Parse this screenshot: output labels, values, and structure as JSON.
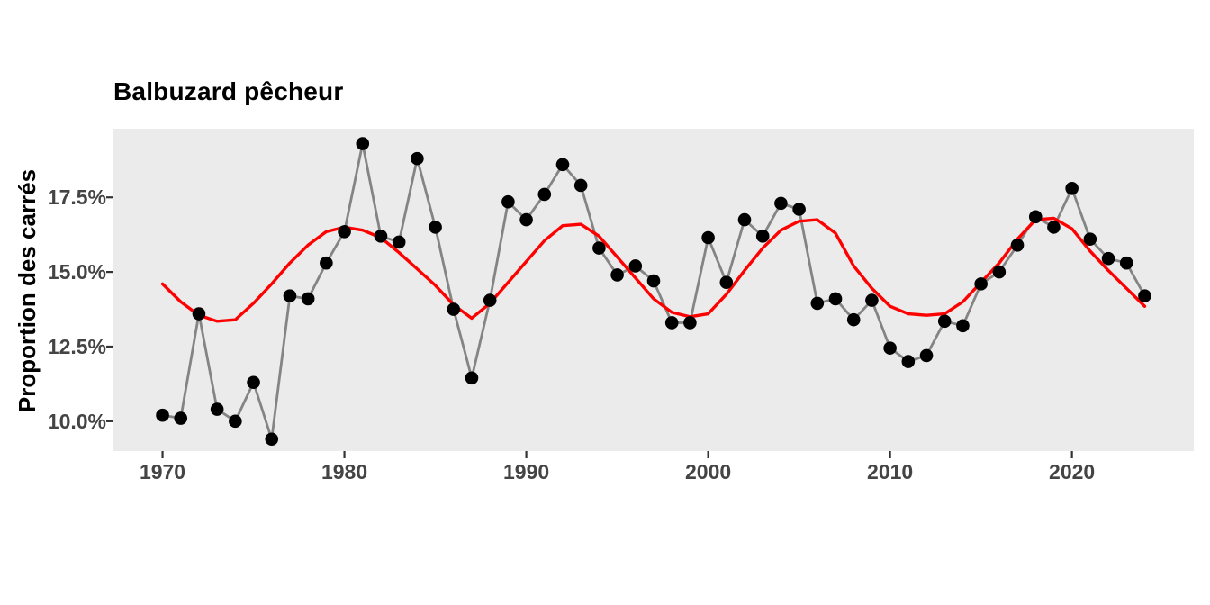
{
  "chart_data": {
    "type": "line",
    "title": "Balbuzard pêcheur",
    "ylabel": "Proportion des carrés",
    "xlabel": "",
    "unit": "%",
    "grid": false,
    "legend": "none",
    "panel_background": "#EBEBEB",
    "axis_text_color": "#444444",
    "tick_mark_color": "#333333",
    "xlim": [
      1967.3,
      2026.7
    ],
    "ylim": [
      9.0,
      19.8
    ],
    "x_ticks": [
      1970,
      1980,
      1990,
      2000,
      2010,
      2020
    ],
    "y_ticks_labels": [
      "10.0%",
      "12.5%",
      "15.0%",
      "17.5%"
    ],
    "y_ticks_values": [
      10.0,
      12.5,
      15.0,
      17.5
    ],
    "x": [
      1970,
      1971,
      1972,
      1973,
      1974,
      1975,
      1976,
      1977,
      1978,
      1979,
      1980,
      1981,
      1982,
      1983,
      1984,
      1985,
      1986,
      1987,
      1988,
      1989,
      1990,
      1991,
      1992,
      1993,
      1994,
      1995,
      1996,
      1997,
      1998,
      1999,
      2000,
      2001,
      2002,
      2003,
      2004,
      2005,
      2006,
      2007,
      2008,
      2009,
      2010,
      2011,
      2012,
      2013,
      2014,
      2015,
      2016,
      2017,
      2018,
      2019,
      2020,
      2021,
      2022,
      2023,
      2024
    ],
    "series": [
      {
        "name": "proportion observée",
        "style": "points-and-line",
        "point_color": "#000000",
        "line_color": "#848484",
        "values": [
          10.2,
          10.1,
          13.6,
          10.4,
          10.0,
          11.3,
          9.4,
          14.2,
          14.1,
          15.3,
          16.35,
          19.3,
          16.2,
          16.0,
          18.8,
          16.5,
          13.75,
          11.45,
          14.05,
          17.35,
          16.75,
          17.6,
          18.6,
          17.9,
          15.8,
          14.9,
          15.2,
          14.7,
          13.3,
          13.3,
          16.15,
          14.65,
          16.75,
          16.2,
          17.3,
          17.1,
          13.95,
          14.1,
          13.4,
          14.05,
          12.45,
          12.0,
          12.2,
          13.35,
          13.2,
          14.6,
          15.0,
          15.9,
          16.85,
          16.5,
          17.8,
          16.1,
          15.45,
          15.3,
          14.2
        ]
      },
      {
        "name": "tendance lissée",
        "style": "smooth-line",
        "line_color": "#FF0000",
        "values": [
          14.6,
          14.0,
          13.55,
          13.35,
          13.4,
          13.95,
          14.6,
          15.3,
          15.9,
          16.35,
          16.5,
          16.4,
          16.15,
          15.65,
          15.1,
          14.55,
          13.9,
          13.45,
          13.95,
          14.65,
          15.35,
          16.05,
          16.55,
          16.6,
          16.2,
          15.5,
          14.8,
          14.1,
          13.65,
          13.5,
          13.6,
          14.25,
          15.05,
          15.8,
          16.4,
          16.7,
          16.75,
          16.3,
          15.2,
          14.45,
          13.85,
          13.6,
          13.55,
          13.6,
          14.0,
          14.65,
          15.3,
          16.1,
          16.75,
          16.8,
          16.45,
          15.7,
          15.05,
          14.45,
          13.85
        ]
      }
    ]
  }
}
